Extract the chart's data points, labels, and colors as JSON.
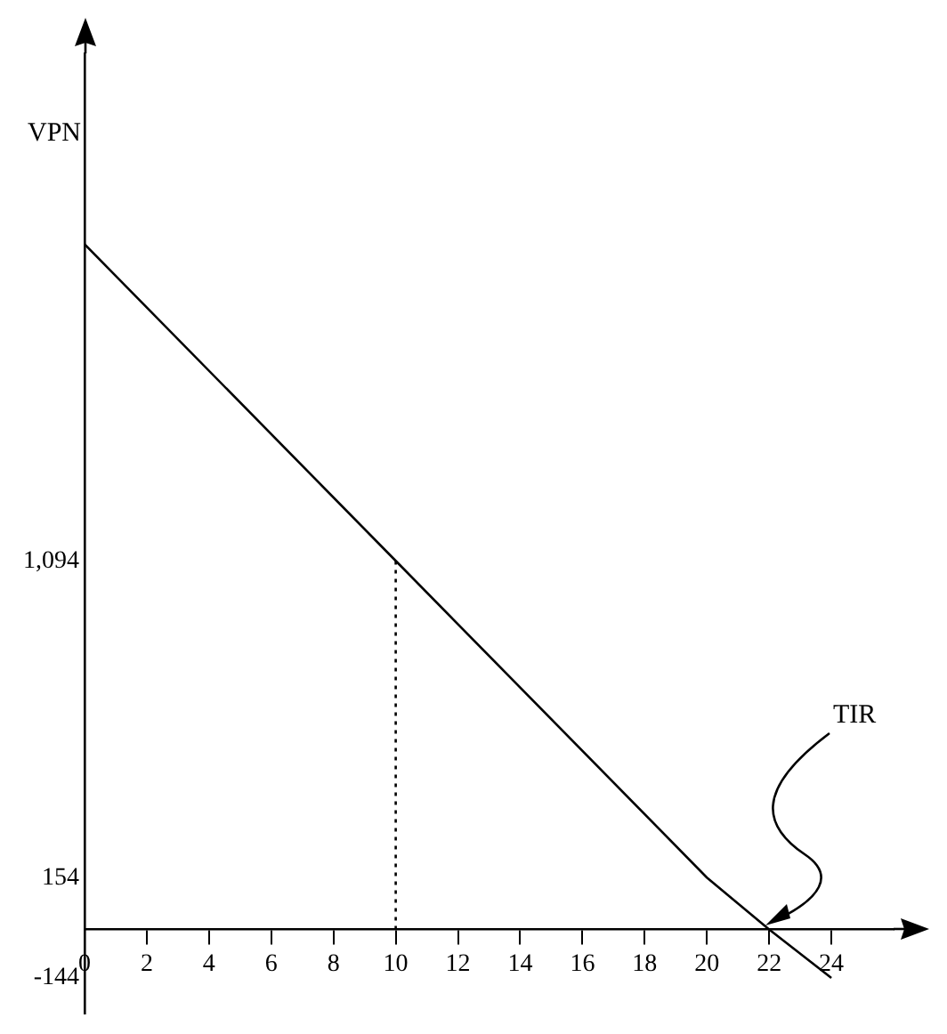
{
  "chart_data": {
    "type": "line",
    "ylabel": "VPN",
    "xlim": [
      0,
      26
    ],
    "xticks": [
      0,
      2,
      4,
      6,
      8,
      10,
      12,
      14,
      16,
      18,
      20,
      22,
      24
    ],
    "ylim": [
      -250,
      2600
    ],
    "yticks": [
      {
        "value": 1094,
        "label": "1,094"
      },
      154,
      -144
    ],
    "series": [
      {
        "color": "#000000",
        "x": [
          0,
          10,
          20,
          22,
          24
        ],
        "values": [
          2034,
          1094,
          154,
          0,
          -144
        ]
      },
      {
        "color": "#000000",
        "line_style": "dotted",
        "x": [
          10,
          10
        ],
        "values": [
          0,
          1094
        ]
      }
    ],
    "annotations": [
      "TIR"
    ],
    "grid": false,
    "legend": false,
    "marker": "none",
    "line_style": "solid"
  }
}
